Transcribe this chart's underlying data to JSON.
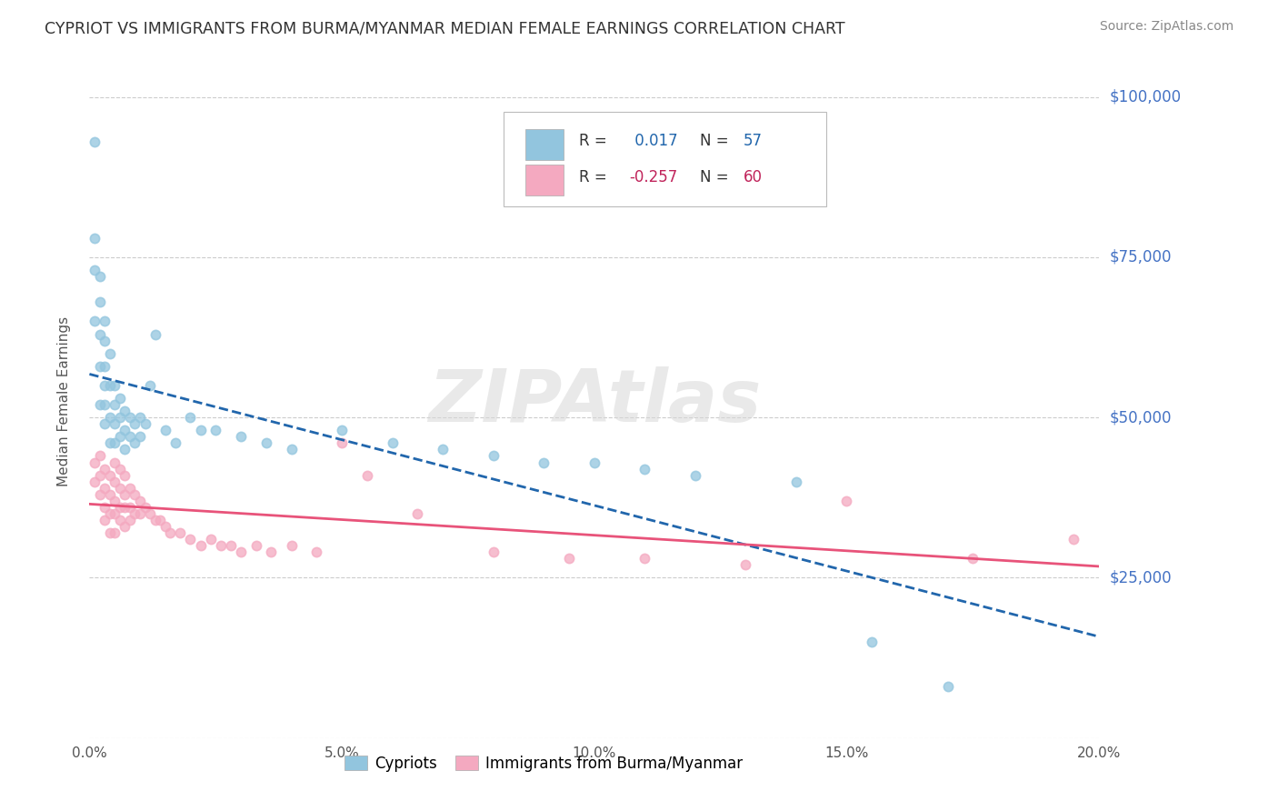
{
  "title": "CYPRIOT VS IMMIGRANTS FROM BURMA/MYANMAR MEDIAN FEMALE EARNINGS CORRELATION CHART",
  "source": "Source: ZipAtlas.com",
  "ylabel": "Median Female Earnings",
  "xmin": 0.0,
  "xmax": 0.2,
  "ymin": 0,
  "ymax": 105000,
  "yticks": [
    0,
    25000,
    50000,
    75000,
    100000
  ],
  "ytick_labels": [
    "",
    "$25,000",
    "$50,000",
    "$75,000",
    "$100,000"
  ],
  "xticks": [
    0.0,
    0.05,
    0.1,
    0.15,
    0.2
  ],
  "xtick_labels": [
    "0.0%",
    "5.0%",
    "10.0%",
    "15.0%",
    "20.0%"
  ],
  "blue_R": 0.017,
  "blue_N": 57,
  "pink_R": -0.257,
  "pink_N": 60,
  "blue_color": "#92c5de",
  "pink_color": "#f4a9c0",
  "blue_line_color": "#2166ac",
  "pink_line_color": "#e8537a",
  "watermark": "ZIPAtlas",
  "background_color": "#ffffff",
  "grid_color": "#cccccc",
  "yaxis_label_color": "#4472c4",
  "legend_label1": "Cypriots",
  "legend_label2": "Immigrants from Burma/Myanmar",
  "blue_x": [
    0.001,
    0.001,
    0.001,
    0.001,
    0.002,
    0.002,
    0.002,
    0.002,
    0.002,
    0.003,
    0.003,
    0.003,
    0.003,
    0.003,
    0.003,
    0.004,
    0.004,
    0.004,
    0.004,
    0.005,
    0.005,
    0.005,
    0.005,
    0.006,
    0.006,
    0.006,
    0.007,
    0.007,
    0.007,
    0.008,
    0.008,
    0.009,
    0.009,
    0.01,
    0.01,
    0.011,
    0.012,
    0.013,
    0.015,
    0.017,
    0.02,
    0.022,
    0.025,
    0.03,
    0.035,
    0.04,
    0.05,
    0.06,
    0.07,
    0.08,
    0.09,
    0.1,
    0.11,
    0.12,
    0.14,
    0.155,
    0.17
  ],
  "blue_y": [
    93000,
    78000,
    73000,
    65000,
    72000,
    68000,
    63000,
    58000,
    52000,
    65000,
    62000,
    58000,
    55000,
    52000,
    49000,
    60000,
    55000,
    50000,
    46000,
    55000,
    52000,
    49000,
    46000,
    53000,
    50000,
    47000,
    51000,
    48000,
    45000,
    50000,
    47000,
    49000,
    46000,
    50000,
    47000,
    49000,
    55000,
    63000,
    48000,
    46000,
    50000,
    48000,
    48000,
    47000,
    46000,
    45000,
    48000,
    46000,
    45000,
    44000,
    43000,
    43000,
    42000,
    41000,
    40000,
    15000,
    8000
  ],
  "pink_x": [
    0.001,
    0.001,
    0.002,
    0.002,
    0.002,
    0.003,
    0.003,
    0.003,
    0.003,
    0.004,
    0.004,
    0.004,
    0.004,
    0.005,
    0.005,
    0.005,
    0.005,
    0.005,
    0.006,
    0.006,
    0.006,
    0.006,
    0.007,
    0.007,
    0.007,
    0.007,
    0.008,
    0.008,
    0.008,
    0.009,
    0.009,
    0.01,
    0.01,
    0.011,
    0.012,
    0.013,
    0.014,
    0.015,
    0.016,
    0.018,
    0.02,
    0.022,
    0.024,
    0.026,
    0.028,
    0.03,
    0.033,
    0.036,
    0.04,
    0.045,
    0.05,
    0.055,
    0.065,
    0.08,
    0.095,
    0.11,
    0.13,
    0.15,
    0.175,
    0.195
  ],
  "pink_y": [
    43000,
    40000,
    44000,
    41000,
    38000,
    42000,
    39000,
    36000,
    34000,
    41000,
    38000,
    35000,
    32000,
    43000,
    40000,
    37000,
    35000,
    32000,
    42000,
    39000,
    36000,
    34000,
    41000,
    38000,
    36000,
    33000,
    39000,
    36000,
    34000,
    38000,
    35000,
    37000,
    35000,
    36000,
    35000,
    34000,
    34000,
    33000,
    32000,
    32000,
    31000,
    30000,
    31000,
    30000,
    30000,
    29000,
    30000,
    29000,
    30000,
    29000,
    46000,
    41000,
    35000,
    29000,
    28000,
    28000,
    27000,
    37000,
    28000,
    31000
  ]
}
